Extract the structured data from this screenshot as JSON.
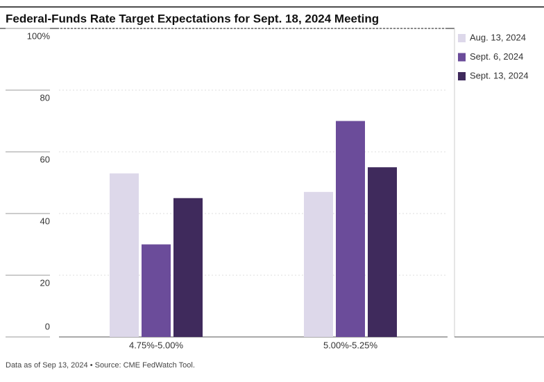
{
  "chart_data": {
    "type": "bar",
    "title": "Federal-Funds Rate Target Expectations for Sept. 18, 2024 Meeting",
    "note": "Data as of Sep 13, 2024 • Source: CME FedWatch Tool.",
    "categories": [
      "4.75%-5.00%",
      "5.00%-5.25%"
    ],
    "series": [
      {
        "name": "Aug. 13, 2024",
        "color": "#ddd8ea",
        "values": [
          53,
          47
        ]
      },
      {
        "name": "Sept. 6, 2024",
        "color": "#6b4c9a",
        "values": [
          30,
          70
        ]
      },
      {
        "name": "Sept. 13, 2024",
        "color": "#3f2a5c",
        "values": [
          45,
          55
        ]
      }
    ],
    "ylim": [
      0,
      100
    ],
    "yticks": [
      0,
      20,
      40,
      60,
      80,
      {
        "value": 100,
        "label": "100%"
      }
    ],
    "grid": true,
    "legend": "right"
  }
}
